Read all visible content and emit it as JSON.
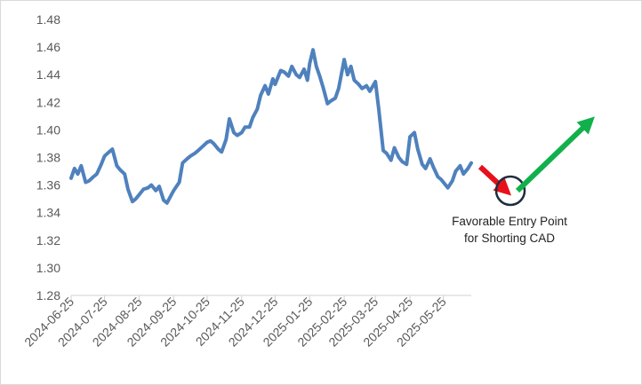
{
  "chart_data": {
    "type": "line",
    "title": "",
    "xlabel": "",
    "ylabel": "",
    "ylim": [
      1.28,
      1.48
    ],
    "yticks": [
      1.28,
      1.3,
      1.32,
      1.34,
      1.36,
      1.38,
      1.4,
      1.42,
      1.44,
      1.46,
      1.48
    ],
    "ytick_labels": [
      "1.28",
      "1.30",
      "1.32",
      "1.34",
      "1.36",
      "1.38",
      "1.40",
      "1.42",
      "1.44",
      "1.46",
      "1.48"
    ],
    "xtick_labels": [
      "2024-06-25",
      "2024-07-25",
      "2024-08-25",
      "2024-09-25",
      "2024-10-25",
      "2024-11-25",
      "2024-12-25",
      "2025-01-25",
      "2025-02-25",
      "2025-03-25",
      "2025-04-25",
      "2025-05-25"
    ],
    "grid": false,
    "legend": "none",
    "series": [
      {
        "name": "",
        "color": "#4f81bd",
        "x": [
          "2024-06-25",
          "2024-06-28",
          "2024-07-01",
          "2024-07-04",
          "2024-07-08",
          "2024-07-11",
          "2024-07-15",
          "2024-07-18",
          "2024-07-22",
          "2024-07-25",
          "2024-07-29",
          "2024-08-01",
          "2024-08-05",
          "2024-08-08",
          "2024-08-12",
          "2024-08-15",
          "2024-08-19",
          "2024-08-22",
          "2024-08-25",
          "2024-08-29",
          "2024-09-02",
          "2024-09-05",
          "2024-09-09",
          "2024-09-12",
          "2024-09-16",
          "2024-09-19",
          "2024-09-23",
          "2024-09-25",
          "2024-09-30",
          "2024-10-03",
          "2024-10-07",
          "2024-10-10",
          "2024-10-14",
          "2024-10-17",
          "2024-10-21",
          "2024-10-25",
          "2024-10-28",
          "2024-10-31",
          "2024-11-04",
          "2024-11-07",
          "2024-11-11",
          "2024-11-14",
          "2024-11-18",
          "2024-11-21",
          "2024-11-25",
          "2024-11-28",
          "2024-12-02",
          "2024-12-05",
          "2024-12-09",
          "2024-12-12",
          "2024-12-16",
          "2024-12-19",
          "2024-12-23",
          "2024-12-25",
          "2024-12-30",
          "2025-01-02",
          "2025-01-06",
          "2025-01-09",
          "2025-01-13",
          "2025-01-16",
          "2025-01-20",
          "2025-01-23",
          "2025-01-25",
          "2025-01-28",
          "2025-01-31",
          "2025-02-03",
          "2025-02-06",
          "2025-02-10",
          "2025-02-13",
          "2025-02-17",
          "2025-02-20",
          "2025-02-25",
          "2025-02-28",
          "2025-03-03",
          "2025-03-06",
          "2025-03-10",
          "2025-03-13",
          "2025-03-17",
          "2025-03-20",
          "2025-03-25",
          "2025-03-28",
          "2025-04-01",
          "2025-04-04",
          "2025-04-08",
          "2025-04-11",
          "2025-04-15",
          "2025-04-18",
          "2025-04-22",
          "2025-04-25",
          "2025-04-29",
          "2025-05-02",
          "2025-05-06",
          "2025-05-09",
          "2025-05-13",
          "2025-05-16",
          "2025-05-20",
          "2025-05-23",
          "2025-05-25",
          "2025-05-29",
          "2025-06-02",
          "2025-06-05",
          "2025-06-09",
          "2025-06-12",
          "2025-06-16",
          "2025-06-19"
        ],
        "values": [
          1.365,
          1.372,
          1.368,
          1.374,
          1.362,
          1.363,
          1.366,
          1.368,
          1.375,
          1.381,
          1.384,
          1.386,
          1.374,
          1.371,
          1.368,
          1.357,
          1.348,
          1.35,
          1.353,
          1.357,
          1.358,
          1.36,
          1.356,
          1.359,
          1.349,
          1.347,
          1.353,
          1.356,
          1.362,
          1.376,
          1.379,
          1.381,
          1.383,
          1.385,
          1.388,
          1.391,
          1.392,
          1.39,
          1.386,
          1.384,
          1.393,
          1.408,
          1.398,
          1.396,
          1.398,
          1.402,
          1.402,
          1.409,
          1.415,
          1.425,
          1.432,
          1.426,
          1.437,
          1.433,
          1.443,
          1.442,
          1.439,
          1.446,
          1.44,
          1.438,
          1.444,
          1.436,
          1.448,
          1.458,
          1.446,
          1.439,
          1.431,
          1.419,
          1.421,
          1.423,
          1.43,
          1.451,
          1.44,
          1.446,
          1.436,
          1.433,
          1.43,
          1.432,
          1.428,
          1.435,
          1.415,
          1.385,
          1.383,
          1.378,
          1.387,
          1.38,
          1.377,
          1.375,
          1.395,
          1.398,
          1.386,
          1.375,
          1.372,
          1.379,
          1.373,
          1.366,
          1.364,
          1.362,
          1.358,
          1.363,
          1.37,
          1.374,
          1.368,
          1.372,
          1.376
        ]
      }
    ],
    "annotations": {
      "label_line1": "Favorable Entry Point",
      "label_line2": "for Shorting CAD",
      "arrow_down_color": "#e8101a",
      "arrow_up_color": "#12b04c",
      "circle_color": "#1f2d3d"
    }
  }
}
